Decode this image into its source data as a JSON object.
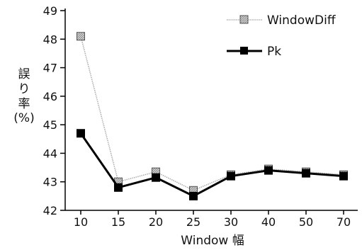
{
  "chart_data": {
    "type": "line",
    "categories": [
      "10",
      "15",
      "20",
      "25",
      "30",
      "40",
      "50",
      "70"
    ],
    "series": [
      {
        "name": "WindowDiff",
        "values": [
          48.1,
          43.0,
          43.35,
          42.7,
          43.25,
          43.45,
          43.35,
          43.25
        ],
        "color": "#aaaaaa",
        "marker": "hatched-square"
      },
      {
        "name": "Pk",
        "values": [
          44.7,
          42.8,
          43.15,
          42.5,
          43.2,
          43.4,
          43.3,
          43.2
        ],
        "color": "#000000",
        "marker": "filled-square"
      }
    ],
    "xlabel": "Window 幅",
    "ylabel_lines": [
      "誤",
      "り",
      "率",
      "(%)"
    ],
    "ylim": [
      42,
      49
    ],
    "yticks": [
      "42",
      "43",
      "44",
      "45",
      "46",
      "47",
      "48",
      "49"
    ],
    "grid": false,
    "legend_position": "top-right"
  }
}
